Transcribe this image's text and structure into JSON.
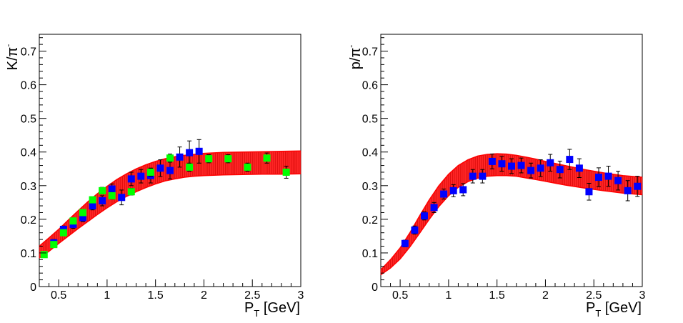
{
  "chart_data": [
    {
      "type": "scatter",
      "panel": "left",
      "xlabel": "P",
      "xlabel_sub": "T",
      "xlabel_unit": " [GeV]",
      "ylabel": "K/π",
      "ylabel_sup": "-",
      "xlim": [
        0.3,
        3.0
      ],
      "ylim": [
        0.0,
        0.75
      ],
      "xticks": [
        0.5,
        1,
        1.5,
        2,
        2.5,
        3
      ],
      "xtick_labels": [
        "0.5",
        "1",
        "1.5",
        "2",
        "2.5",
        "3"
      ],
      "yticks": [
        0,
        0.1,
        0.2,
        0.3,
        0.4,
        0.5,
        0.6,
        0.7
      ],
      "ytick_labels": [
        "0",
        "0.1",
        "0.2",
        "0.3",
        "0.4",
        "0.5",
        "0.6",
        "0.7"
      ],
      "band": {
        "name": "model band",
        "color": "#ff0000",
        "x": [
          0.3,
          0.4,
          0.5,
          0.6,
          0.7,
          0.8,
          0.9,
          1.0,
          1.1,
          1.2,
          1.3,
          1.4,
          1.5,
          1.6,
          1.7,
          1.8,
          1.9,
          2.0,
          2.2,
          2.4,
          2.6,
          2.8,
          3.0
        ],
        "upper": [
          0.12,
          0.145,
          0.17,
          0.198,
          0.225,
          0.252,
          0.276,
          0.298,
          0.318,
          0.335,
          0.35,
          0.362,
          0.372,
          0.38,
          0.386,
          0.39,
          0.393,
          0.396,
          0.399,
          0.4,
          0.401,
          0.402,
          0.403
        ],
        "lower": [
          0.085,
          0.105,
          0.128,
          0.15,
          0.172,
          0.193,
          0.214,
          0.234,
          0.252,
          0.268,
          0.282,
          0.294,
          0.305,
          0.314,
          0.32,
          0.325,
          0.328,
          0.33,
          0.332,
          0.333,
          0.334,
          0.334,
          0.335
        ]
      },
      "series": [
        {
          "name": "blue squares",
          "color": "#0000ff",
          "x": [
            0.45,
            0.55,
            0.65,
            0.75,
            0.85,
            0.95,
            1.05,
            1.15,
            1.25,
            1.35,
            1.45,
            1.55,
            1.65,
            1.75,
            1.85,
            1.95
          ],
          "y": [
            0.13,
            0.17,
            0.185,
            0.205,
            0.24,
            0.255,
            0.29,
            0.265,
            0.32,
            0.328,
            0.33,
            0.352,
            0.345,
            0.385,
            0.398,
            0.402
          ],
          "err": [
            0.01,
            0.01,
            0.012,
            0.012,
            0.012,
            0.015,
            0.015,
            0.022,
            0.02,
            0.02,
            0.022,
            0.025,
            0.025,
            0.03,
            0.035,
            0.035
          ]
        },
        {
          "name": "green squares",
          "color": "#00ff00",
          "x": [
            0.35,
            0.45,
            0.55,
            0.65,
            0.75,
            0.85,
            0.95,
            1.05,
            1.25,
            1.45,
            1.65,
            1.85,
            2.05,
            2.25,
            2.45,
            2.65,
            2.85
          ],
          "y": [
            0.095,
            0.125,
            0.16,
            0.195,
            0.22,
            0.258,
            0.285,
            0.27,
            0.282,
            0.34,
            0.382,
            0.355,
            0.38,
            0.38,
            0.355,
            0.382,
            0.34
          ],
          "err": [
            0.006,
            0.006,
            0.008,
            0.008,
            0.009,
            0.009,
            0.01,
            0.01,
            0.01,
            0.012,
            0.012,
            0.012,
            0.012,
            0.012,
            0.012,
            0.015,
            0.018
          ]
        }
      ]
    },
    {
      "type": "scatter",
      "panel": "right",
      "xlabel": "P",
      "xlabel_sub": "T",
      "xlabel_unit": " [GeV]",
      "ylabel": "p/π",
      "ylabel_sup": "-",
      "xlim": [
        0.3,
        3.0
      ],
      "ylim": [
        0.0,
        0.75
      ],
      "xticks": [
        0.5,
        1,
        1.5,
        2,
        2.5,
        3
      ],
      "xtick_labels": [
        "0.5",
        "1",
        "1.5",
        "2",
        "2.5",
        "3"
      ],
      "yticks": [
        0,
        0.1,
        0.2,
        0.3,
        0.4,
        0.5,
        0.6,
        0.7
      ],
      "ytick_labels": [
        "0",
        "0.1",
        "0.2",
        "0.3",
        "0.4",
        "0.5",
        "0.6",
        "0.7"
      ],
      "band": {
        "name": "model band",
        "color": "#ff0000",
        "x": [
          0.3,
          0.4,
          0.5,
          0.6,
          0.7,
          0.8,
          0.9,
          1.0,
          1.1,
          1.2,
          1.3,
          1.4,
          1.5,
          1.6,
          1.7,
          1.8,
          1.9,
          2.0,
          2.2,
          2.4,
          2.6,
          2.8,
          3.0
        ],
        "upper": [
          0.05,
          0.08,
          0.115,
          0.16,
          0.21,
          0.258,
          0.3,
          0.334,
          0.36,
          0.377,
          0.388,
          0.393,
          0.395,
          0.394,
          0.39,
          0.385,
          0.379,
          0.372,
          0.36,
          0.348,
          0.338,
          0.33,
          0.325
        ],
        "lower": [
          0.035,
          0.055,
          0.082,
          0.118,
          0.158,
          0.2,
          0.238,
          0.27,
          0.295,
          0.312,
          0.322,
          0.328,
          0.33,
          0.33,
          0.328,
          0.323,
          0.318,
          0.313,
          0.302,
          0.293,
          0.285,
          0.278,
          0.273
        ]
      },
      "series": [
        {
          "name": "blue squares",
          "color": "#0000ff",
          "x": [
            0.55,
            0.65,
            0.75,
            0.85,
            0.95,
            1.05,
            1.15,
            1.25,
            1.35,
            1.45,
            1.55,
            1.65,
            1.75,
            1.85,
            1.95,
            2.05,
            2.15,
            2.25,
            2.35,
            2.45,
            2.55,
            2.65,
            2.75,
            2.85,
            2.95
          ],
          "y": [
            0.128,
            0.168,
            0.21,
            0.235,
            0.275,
            0.285,
            0.288,
            0.328,
            0.328,
            0.372,
            0.365,
            0.358,
            0.36,
            0.345,
            0.352,
            0.368,
            0.348,
            0.378,
            0.352,
            0.282,
            0.325,
            0.328,
            0.315,
            0.285,
            0.298
          ],
          "err": [
            0.01,
            0.012,
            0.012,
            0.015,
            0.015,
            0.018,
            0.018,
            0.02,
            0.02,
            0.022,
            0.022,
            0.022,
            0.022,
            0.022,
            0.025,
            0.025,
            0.025,
            0.03,
            0.028,
            0.025,
            0.028,
            0.03,
            0.028,
            0.03,
            0.03
          ]
        }
      ]
    }
  ]
}
